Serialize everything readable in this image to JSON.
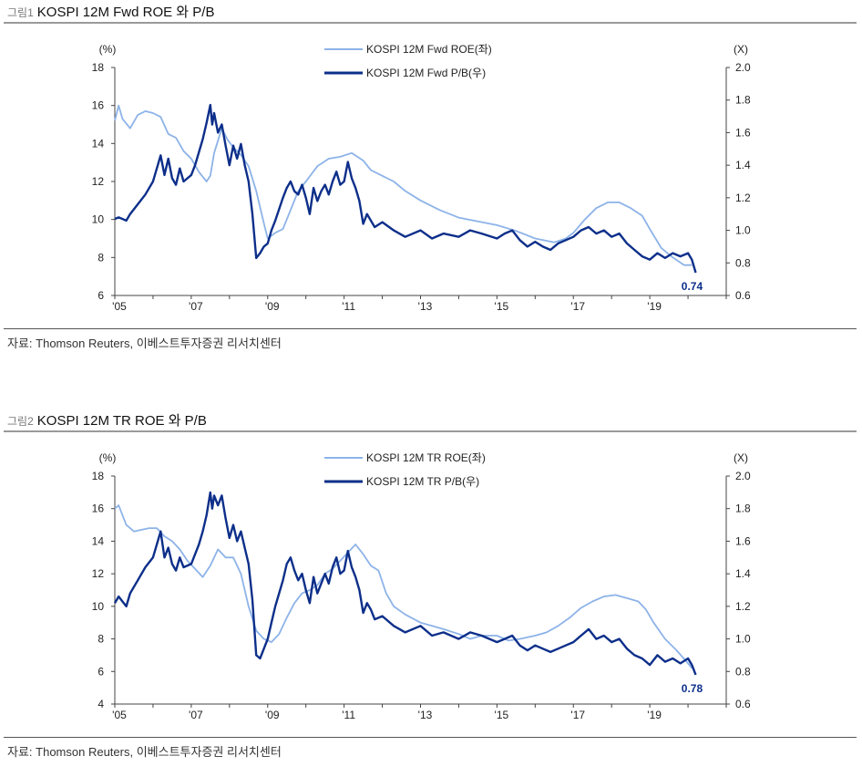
{
  "figures": [
    {
      "number": "그림1",
      "title": "KOSPI 12M Fwd ROE 와 P/B",
      "source": "자료: Thomson Reuters, 이베스트투자증권 리서치센터",
      "colors": {
        "roe": "#8db3e8",
        "pb": "#0d2f8a",
        "axis": "#444444"
      },
      "chart_data": {
        "type": "line",
        "title": "KOSPI 12M Fwd ROE 와 P/B",
        "x_ticks": [
          "'05",
          "'07",
          "'09",
          "'11",
          "'13",
          "'15",
          "'17",
          "'19"
        ],
        "x_range": [
          2005,
          2021
        ],
        "left_axis": {
          "unit": "(%)",
          "range": [
            6,
            18
          ],
          "ticks": [
            "6",
            "8",
            "10",
            "12",
            "14",
            "16",
            "18"
          ]
        },
        "right_axis": {
          "unit": "(X)",
          "range": [
            0.6,
            2.0
          ],
          "ticks": [
            "0.6",
            "0.8",
            "1.0",
            "1.2",
            "1.4",
            "1.6",
            "1.8",
            "2.0"
          ]
        },
        "legend_position": "top-center",
        "end_label": "0.74",
        "series": [
          {
            "name": "KOSPI 12M Fwd ROE(좌)",
            "axis": "left",
            "color": "#8db3e8",
            "x": [
              2005.0,
              2005.1,
              2005.2,
              2005.4,
              2005.6,
              2005.8,
              2006.0,
              2006.2,
              2006.4,
              2006.6,
              2006.8,
              2007.0,
              2007.2,
              2007.4,
              2007.5,
              2007.6,
              2007.8,
              2007.95,
              2008.1,
              2008.3,
              2008.5,
              2008.7,
              2008.9,
              2009.0,
              2009.2,
              2009.4,
              2009.6,
              2009.8,
              2010.0,
              2010.3,
              2010.6,
              2010.9,
              2011.2,
              2011.5,
              2011.7,
              2012.0,
              2012.3,
              2012.6,
              2013.0,
              2013.5,
              2014.0,
              2014.5,
              2015.0,
              2015.5,
              2016.0,
              2016.5,
              2016.8,
              2017.0,
              2017.3,
              2017.6,
              2017.9,
              2018.2,
              2018.5,
              2018.8,
              2019.0,
              2019.3,
              2019.6,
              2019.9,
              2020.1
            ],
            "y": [
              15.2,
              16.0,
              15.3,
              14.8,
              15.5,
              15.7,
              15.6,
              15.4,
              14.5,
              14.3,
              13.6,
              13.2,
              12.5,
              12.0,
              12.3,
              13.5,
              14.8,
              14.2,
              13.8,
              13.4,
              12.8,
              11.5,
              9.8,
              9.0,
              9.3,
              9.5,
              10.5,
              11.5,
              12.0,
              12.8,
              13.2,
              13.3,
              13.5,
              13.1,
              12.6,
              12.3,
              12.0,
              11.5,
              11.0,
              10.5,
              10.1,
              9.9,
              9.7,
              9.4,
              9.0,
              8.8,
              9.0,
              9.3,
              10.0,
              10.6,
              10.9,
              10.9,
              10.6,
              10.2,
              9.5,
              8.5,
              8.0,
              7.6,
              7.6
            ]
          },
          {
            "name": "KOSPI 12M Fwd P/B(우)",
            "axis": "right",
            "color": "#0d2f8a",
            "x": [
              2005.0,
              2005.1,
              2005.3,
              2005.4,
              2005.6,
              2005.8,
              2006.0,
              2006.1,
              2006.2,
              2006.3,
              2006.4,
              2006.5,
              2006.6,
              2006.7,
              2006.8,
              2007.0,
              2007.1,
              2007.2,
              2007.3,
              2007.4,
              2007.5,
              2007.55,
              2007.6,
              2007.7,
              2007.8,
              2007.9,
              2008.0,
              2008.1,
              2008.2,
              2008.3,
              2008.4,
              2008.5,
              2008.6,
              2008.7,
              2008.8,
              2008.9,
              2009.0,
              2009.1,
              2009.2,
              2009.3,
              2009.4,
              2009.5,
              2009.6,
              2009.7,
              2009.8,
              2009.9,
              2010.0,
              2010.1,
              2010.2,
              2010.3,
              2010.4,
              2010.5,
              2010.6,
              2010.7,
              2010.8,
              2010.9,
              2011.0,
              2011.1,
              2011.2,
              2011.3,
              2011.4,
              2011.5,
              2011.6,
              2011.7,
              2011.8,
              2012.0,
              2012.3,
              2012.6,
              2013.0,
              2013.3,
              2013.6,
              2014.0,
              2014.3,
              2014.6,
              2015.0,
              2015.2,
              2015.4,
              2015.6,
              2015.8,
              2016.0,
              2016.2,
              2016.4,
              2016.6,
              2016.8,
              2017.0,
              2017.2,
              2017.4,
              2017.6,
              2017.8,
              2018.0,
              2018.2,
              2018.4,
              2018.6,
              2018.8,
              2019.0,
              2019.2,
              2019.4,
              2019.6,
              2019.8,
              2020.0,
              2020.1,
              2020.2
            ],
            "y": [
              1.07,
              1.08,
              1.06,
              1.1,
              1.16,
              1.22,
              1.3,
              1.38,
              1.46,
              1.34,
              1.44,
              1.32,
              1.28,
              1.38,
              1.3,
              1.34,
              1.4,
              1.48,
              1.56,
              1.66,
              1.77,
              1.65,
              1.72,
              1.6,
              1.65,
              1.52,
              1.4,
              1.52,
              1.44,
              1.53,
              1.4,
              1.3,
              1.1,
              0.83,
              0.86,
              0.9,
              0.92,
              1.0,
              1.06,
              1.13,
              1.2,
              1.26,
              1.3,
              1.24,
              1.22,
              1.28,
              1.2,
              1.1,
              1.26,
              1.18,
              1.24,
              1.28,
              1.22,
              1.3,
              1.36,
              1.28,
              1.3,
              1.42,
              1.32,
              1.26,
              1.18,
              1.04,
              1.1,
              1.06,
              1.02,
              1.05,
              1.0,
              0.96,
              1.0,
              0.95,
              0.98,
              0.96,
              1.0,
              0.98,
              0.95,
              0.98,
              1.0,
              0.94,
              0.9,
              0.93,
              0.9,
              0.88,
              0.92,
              0.94,
              0.96,
              1.0,
              1.02,
              0.98,
              1.0,
              0.96,
              0.98,
              0.92,
              0.88,
              0.84,
              0.82,
              0.86,
              0.83,
              0.86,
              0.84,
              0.86,
              0.82,
              0.74
            ]
          }
        ]
      }
    },
    {
      "number": "그림2",
      "title": "KOSPI 12M TR ROE 와 P/B",
      "source": "자료: Thomson Reuters, 이베스트투자증권 리서치센터",
      "colors": {
        "roe": "#8db3e8",
        "pb": "#0d2f8a",
        "axis": "#444444"
      },
      "chart_data": {
        "type": "line",
        "title": "KOSPI 12M TR ROE 와 P/B",
        "x_ticks": [
          "'05",
          "'07",
          "'09",
          "'11",
          "'13",
          "'15",
          "'17",
          "'19"
        ],
        "x_range": [
          2005,
          2021
        ],
        "left_axis": {
          "unit": "(%)",
          "range": [
            4,
            18
          ],
          "ticks": [
            "4",
            "6",
            "8",
            "10",
            "12",
            "14",
            "16",
            "18"
          ]
        },
        "right_axis": {
          "unit": "(X)",
          "range": [
            0.6,
            2.0
          ],
          "ticks": [
            "0.6",
            "0.8",
            "1.0",
            "1.2",
            "1.4",
            "1.6",
            "1.8",
            "2.0"
          ]
        },
        "legend_position": "top-center",
        "end_label": "0.78",
        "series": [
          {
            "name": "KOSPI 12M TR ROE(좌)",
            "axis": "left",
            "color": "#8db3e8",
            "x": [
              2005.0,
              2005.1,
              2005.3,
              2005.5,
              2005.7,
              2005.9,
              2006.1,
              2006.3,
              2006.5,
              2006.7,
              2006.9,
              2007.1,
              2007.3,
              2007.5,
              2007.7,
              2007.9,
              2008.1,
              2008.3,
              2008.5,
              2008.7,
              2008.9,
              2009.1,
              2009.3,
              2009.5,
              2009.7,
              2009.9,
              2010.1,
              2010.3,
              2010.5,
              2010.7,
              2010.9,
              2011.1,
              2011.3,
              2011.5,
              2011.7,
              2011.9,
              2012.1,
              2012.3,
              2012.6,
              2013.0,
              2013.3,
              2013.6,
              2014.0,
              2014.3,
              2014.6,
              2015.0,
              2015.3,
              2015.6,
              2016.0,
              2016.3,
              2016.6,
              2016.9,
              2017.2,
              2017.5,
              2017.8,
              2018.1,
              2018.4,
              2018.7,
              2018.9,
              2019.1,
              2019.4,
              2019.7,
              2020.0,
              2020.1
            ],
            "y": [
              16.0,
              16.2,
              15.0,
              14.6,
              14.7,
              14.8,
              14.8,
              14.3,
              14.0,
              13.5,
              12.8,
              12.3,
              11.8,
              12.5,
              13.5,
              13.0,
              13.0,
              12.0,
              10.0,
              8.5,
              8.0,
              7.8,
              8.3,
              9.3,
              10.2,
              10.8,
              11.0,
              11.3,
              12.0,
              12.3,
              12.8,
              13.3,
              13.8,
              13.2,
              12.5,
              12.2,
              10.8,
              10.0,
              9.5,
              9.0,
              8.8,
              8.6,
              8.3,
              8.0,
              8.2,
              8.2,
              7.9,
              8.0,
              8.2,
              8.4,
              8.8,
              9.3,
              9.9,
              10.3,
              10.6,
              10.7,
              10.5,
              10.3,
              9.8,
              9.0,
              8.0,
              7.3,
              6.5,
              6.2
            ]
          },
          {
            "name": "KOSPI 12M TR P/B(우)",
            "axis": "right",
            "color": "#0d2f8a",
            "x": [
              2005.0,
              2005.1,
              2005.3,
              2005.4,
              2005.6,
              2005.8,
              2006.0,
              2006.1,
              2006.2,
              2006.3,
              2006.4,
              2006.5,
              2006.6,
              2006.7,
              2006.8,
              2007.0,
              2007.1,
              2007.2,
              2007.3,
              2007.4,
              2007.5,
              2007.55,
              2007.6,
              2007.7,
              2007.8,
              2007.9,
              2008.0,
              2008.1,
              2008.2,
              2008.3,
              2008.4,
              2008.5,
              2008.6,
              2008.7,
              2008.8,
              2008.9,
              2009.0,
              2009.1,
              2009.2,
              2009.3,
              2009.4,
              2009.5,
              2009.6,
              2009.7,
              2009.8,
              2009.9,
              2010.0,
              2010.1,
              2010.2,
              2010.3,
              2010.4,
              2010.5,
              2010.6,
              2010.7,
              2010.8,
              2010.9,
              2011.0,
              2011.1,
              2011.2,
              2011.3,
              2011.4,
              2011.5,
              2011.6,
              2011.7,
              2011.8,
              2012.0,
              2012.3,
              2012.6,
              2013.0,
              2013.3,
              2013.6,
              2014.0,
              2014.3,
              2014.6,
              2015.0,
              2015.2,
              2015.4,
              2015.6,
              2015.8,
              2016.0,
              2016.2,
              2016.4,
              2016.6,
              2016.8,
              2017.0,
              2017.2,
              2017.4,
              2017.6,
              2017.8,
              2018.0,
              2018.2,
              2018.4,
              2018.6,
              2018.8,
              2019.0,
              2019.2,
              2019.4,
              2019.6,
              2019.8,
              2020.0,
              2020.1,
              2020.2
            ],
            "y": [
              1.22,
              1.26,
              1.2,
              1.28,
              1.36,
              1.44,
              1.5,
              1.58,
              1.66,
              1.5,
              1.56,
              1.46,
              1.42,
              1.5,
              1.44,
              1.46,
              1.52,
              1.58,
              1.66,
              1.76,
              1.9,
              1.8,
              1.88,
              1.82,
              1.88,
              1.74,
              1.62,
              1.7,
              1.6,
              1.66,
              1.56,
              1.46,
              1.24,
              0.9,
              0.88,
              0.94,
              1.0,
              1.1,
              1.2,
              1.28,
              1.36,
              1.46,
              1.5,
              1.42,
              1.36,
              1.4,
              1.3,
              1.22,
              1.38,
              1.28,
              1.34,
              1.4,
              1.34,
              1.44,
              1.5,
              1.4,
              1.42,
              1.54,
              1.44,
              1.38,
              1.3,
              1.16,
              1.22,
              1.18,
              1.12,
              1.14,
              1.08,
              1.04,
              1.08,
              1.02,
              1.04,
              1.0,
              1.04,
              1.02,
              0.98,
              1.0,
              1.02,
              0.96,
              0.93,
              0.96,
              0.94,
              0.92,
              0.94,
              0.96,
              0.98,
              1.02,
              1.06,
              1.0,
              1.02,
              0.98,
              1.0,
              0.94,
              0.9,
              0.88,
              0.84,
              0.9,
              0.86,
              0.88,
              0.85,
              0.88,
              0.84,
              0.78
            ]
          }
        ]
      }
    }
  ]
}
